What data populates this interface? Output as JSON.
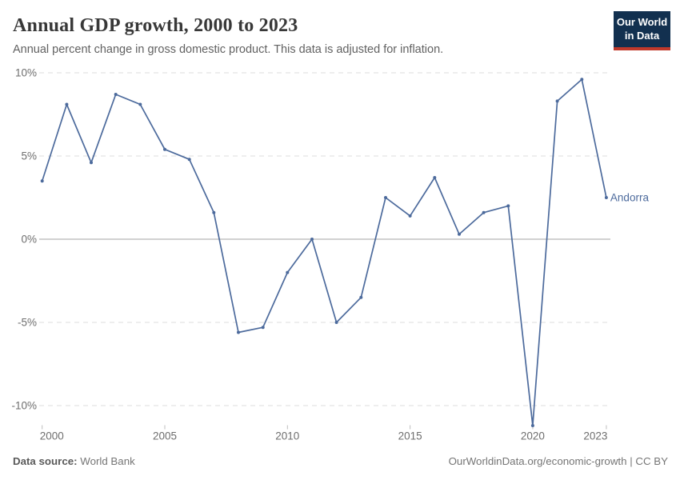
{
  "header": {
    "title": "Annual GDP growth, 2000 to 2023",
    "subtitle": "Annual percent change in gross domestic product. This data is adjusted for inflation."
  },
  "logo": {
    "line1": "Our World",
    "line2": "in Data"
  },
  "colors": {
    "line": "#4c6a9c",
    "entity_label": "#4c6a9c",
    "grid": "#dcdcdc",
    "zero_line": "#a3a3a3",
    "tick": "#bdbdbd",
    "axis_text": "#6e6e6e",
    "logo_bg": "#12304f",
    "logo_accent": "#c0392b"
  },
  "chart_data": {
    "type": "line",
    "title": "Annual GDP growth, 2000 to 2023",
    "xlabel": "",
    "ylabel": "",
    "unit": "%",
    "x": [
      2000,
      2001,
      2002,
      2003,
      2004,
      2005,
      2006,
      2007,
      2008,
      2009,
      2010,
      2011,
      2012,
      2013,
      2014,
      2015,
      2016,
      2017,
      2018,
      2019,
      2020,
      2021,
      2022,
      2023
    ],
    "series": [
      {
        "name": "Andorra",
        "values": [
          3.5,
          8.1,
          4.6,
          8.7,
          8.1,
          5.4,
          4.8,
          1.6,
          -5.6,
          -5.3,
          -2.0,
          0.0,
          -5.0,
          -3.5,
          2.5,
          1.4,
          3.7,
          0.3,
          1.6,
          2.0,
          -11.2,
          8.3,
          9.6,
          2.5
        ]
      }
    ],
    "end_label": "Andorra",
    "ylim": [
      -11.5,
      10
    ],
    "y_ticks": [
      {
        "value": 10,
        "label": "10%"
      },
      {
        "value": 5,
        "label": "5%"
      },
      {
        "value": 0,
        "label": "0%"
      },
      {
        "value": -5,
        "label": "-5%"
      },
      {
        "value": -10,
        "label": "-10%"
      }
    ],
    "x_ticks": [
      {
        "value": 2000,
        "label": "2000"
      },
      {
        "value": 2005,
        "label": "2005"
      },
      {
        "value": 2010,
        "label": "2010"
      },
      {
        "value": 2015,
        "label": "2015"
      },
      {
        "value": 2020,
        "label": "2020"
      },
      {
        "value": 2023,
        "label": "2023"
      }
    ],
    "grid": "horizontal-dashed",
    "legend": "none"
  },
  "footer": {
    "source_label": "Data source:",
    "source_value": " World Bank",
    "credit": "OurWorldinData.org/economic-growth | CC BY"
  }
}
